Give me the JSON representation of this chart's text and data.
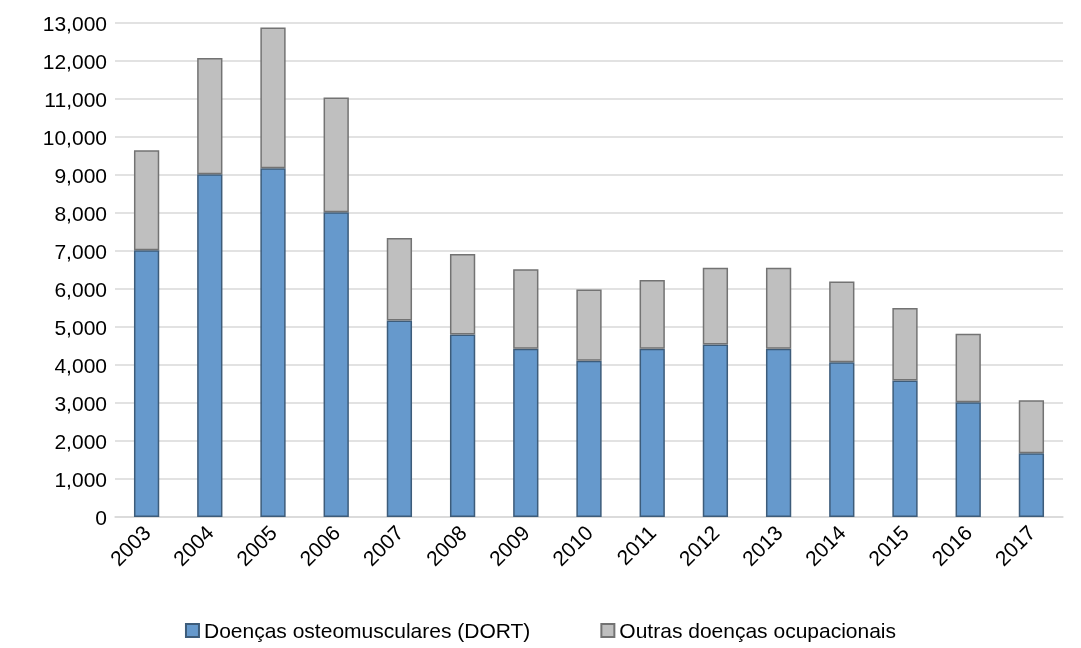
{
  "chart_data": {
    "type": "bar",
    "stacked": true,
    "categories": [
      "2003",
      "2004",
      "2005",
      "2006",
      "2007",
      "2008",
      "2009",
      "2010",
      "2011",
      "2012",
      "2013",
      "2014",
      "2015",
      "2016",
      "2017"
    ],
    "series": [
      {
        "name": "Doenças osteomusculares (DORT)",
        "color": "#6699cc",
        "values": [
          7020,
          9020,
          9180,
          8020,
          5170,
          4800,
          4430,
          4110,
          4430,
          4540,
          4430,
          4070,
          3590,
          3020,
          1680
        ]
      },
      {
        "name": "Outras doenças ocupacionais",
        "color": "#bfbfbf",
        "values": [
          2630,
          3060,
          3700,
          3020,
          2170,
          2120,
          2090,
          1880,
          1810,
          2020,
          2130,
          2130,
          1910,
          1800,
          1390
        ]
      }
    ],
    "ylim": [
      0,
      13000
    ],
    "yticks": [
      0,
      {
        "value": 1000,
        "label": "1,000"
      },
      {
        "value": 2000,
        "label": "2,000"
      },
      {
        "value": 3000,
        "label": "3,000"
      },
      {
        "value": 4000,
        "label": "4,000"
      },
      {
        "value": 5000,
        "label": "5,000"
      },
      {
        "value": 6000,
        "label": "6,000"
      },
      {
        "value": 7000,
        "label": "7,000"
      },
      {
        "value": 8000,
        "label": "8,000"
      },
      {
        "value": 9000,
        "label": "9,000"
      },
      {
        "value": 10000,
        "label": "10,000"
      },
      {
        "value": 11000,
        "label": "11,000"
      },
      {
        "value": 12000,
        "label": "12,000"
      },
      {
        "value": 13000,
        "label": "13,000"
      }
    ],
    "grid": "y",
    "legend": "bottom"
  }
}
